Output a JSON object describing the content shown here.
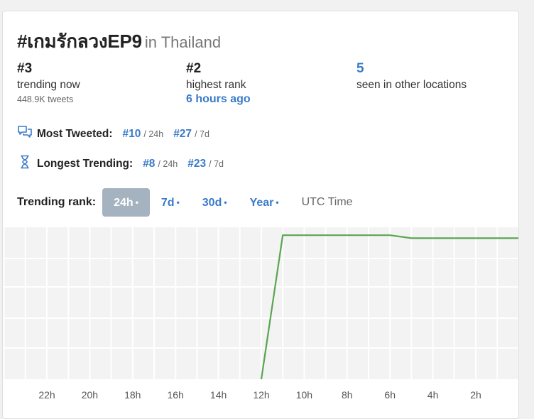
{
  "trend": {
    "hashtag": "#เกมรักลวงEP9",
    "location": "in Thailand"
  },
  "stats": {
    "trending_now": {
      "value": "#3",
      "label": "trending now",
      "tweets": "448.9K tweets"
    },
    "highest_rank": {
      "value": "#2",
      "label": "highest rank",
      "when": "6 hours ago"
    },
    "other_locations": {
      "value": "5",
      "label": "seen in other locations"
    }
  },
  "most_tweeted": {
    "label": "Most Tweeted:",
    "entries": [
      {
        "rank": "#10",
        "period": "/ 24h"
      },
      {
        "rank": "#27",
        "period": "/ 7d"
      }
    ]
  },
  "longest_trending": {
    "label": "Longest Trending:",
    "entries": [
      {
        "rank": "#8",
        "period": "/ 24h"
      },
      {
        "rank": "#23",
        "period": "/ 7d"
      }
    ]
  },
  "range_tabs": {
    "label": "Trending rank:",
    "tabs": [
      {
        "label": "24h",
        "dot": "•",
        "active": true
      },
      {
        "label": "7d",
        "dot": "•",
        "active": false
      },
      {
        "label": "30d",
        "dot": "•",
        "active": false
      },
      {
        "label": "Year",
        "dot": "•",
        "active": false
      }
    ],
    "utc": "UTC Time"
  },
  "colors": {
    "line": "#5aa551",
    "grid_bg": "#f3f3f3",
    "grid_line": "#ffffff",
    "link": "#3a7bc8",
    "active_tab": "#a5b2c0"
  },
  "chart_data": {
    "type": "line",
    "x_unit": "hours ago",
    "xlim": [
      24,
      0
    ],
    "ylim": [
      1,
      50
    ],
    "y_axis": "rank (1 at top)",
    "grid": true,
    "tick_labels": [
      "22h",
      "20h",
      "18h",
      "16h",
      "14h",
      "12h",
      "10h",
      "8h",
      "6h",
      "4h",
      "2h"
    ],
    "tick_hours": [
      22,
      20,
      18,
      16,
      14,
      12,
      10,
      8,
      6,
      4,
      2
    ],
    "series": [
      {
        "x": [
          12,
          11,
          10.5,
          6,
          5,
          0
        ],
        "y": [
          50,
          2,
          2,
          2,
          3,
          3
        ]
      }
    ]
  }
}
